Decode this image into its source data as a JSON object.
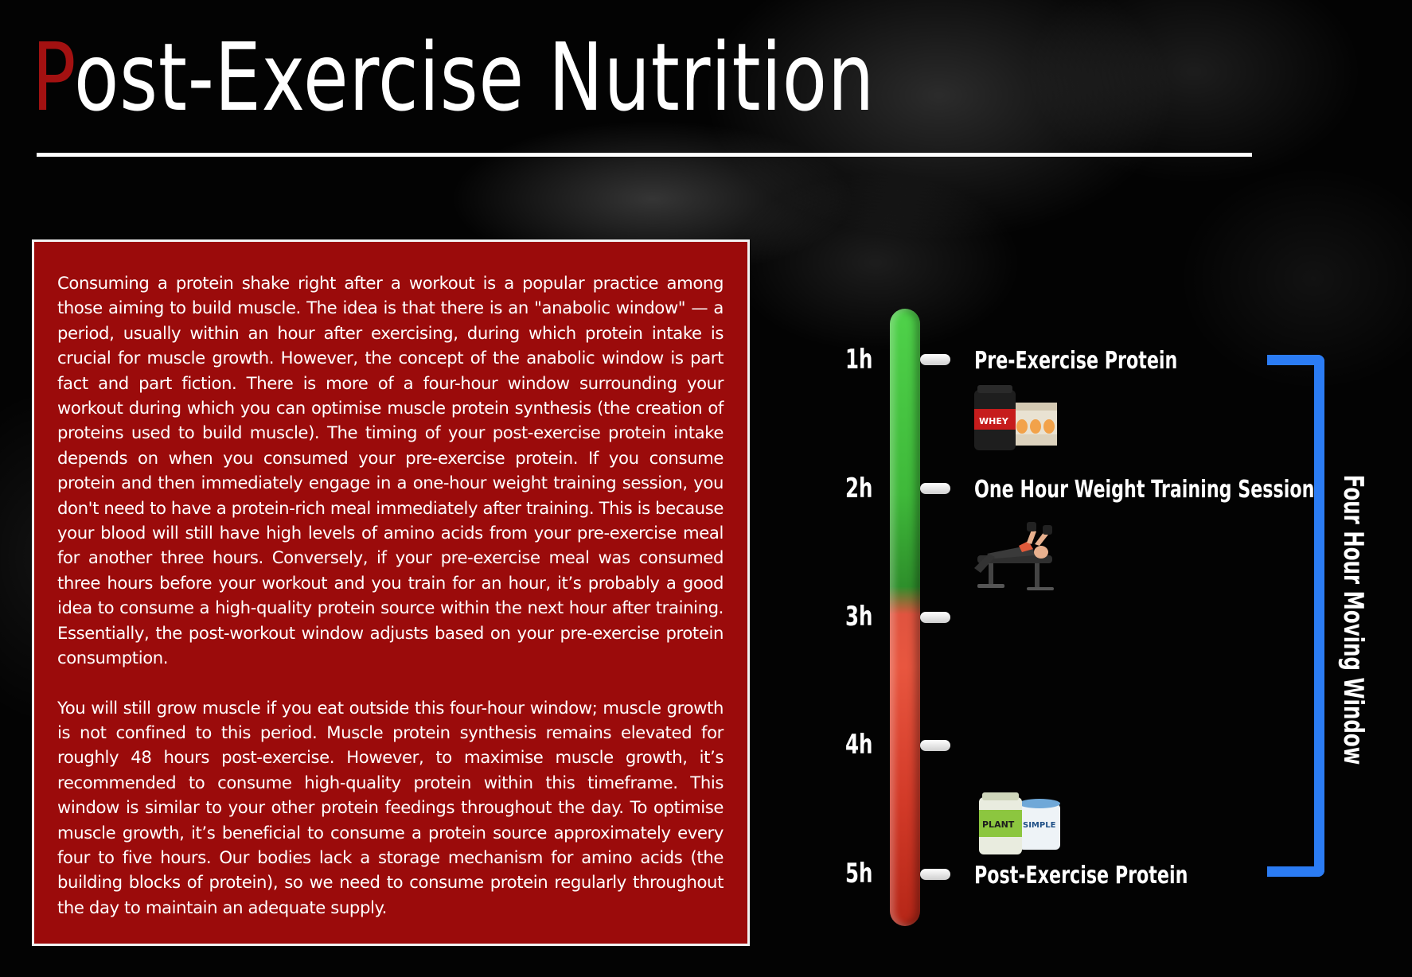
{
  "title": {
    "first_letter": "P",
    "rest": "ost-Exercise Nutrition"
  },
  "panel": {
    "paragraphs": [
      "Consuming a protein shake right after a workout is a popular practice among those aiming to build muscle. The idea is that there is an \"anabolic window\" — a period, usually within an hour after exercising, during which protein intake is crucial for muscle growth. However, the concept of the anabolic window is part fact and part fiction. There is more of a four-hour window surrounding your workout during which you can optimise muscle protein synthesis (the creation of proteins used to build muscle). The timing of your post-exercise protein intake depends on when you consumed your pre-exercise protein. If you consume protein and then immediately engage in a one-hour weight training session, you don't need to have a protein-rich meal immediately after training. This is because your blood will still have high levels of amino acids from your pre-exercise meal for another three hours. Conversely, if your pre-exercise meal was consumed three hours before your workout and you train for an hour, it’s probably a good idea to consume a high-quality protein source within the next hour after training. Essentially, the post-workout window adjusts based on your pre-exercise protein consumption.",
      "You will still grow muscle if you eat outside this four-hour window; muscle growth is not confined to this period. Muscle protein synthesis remains elevated for roughly 48 hours post-exercise. However, to maximise muscle growth, it’s recommended to consume high-quality protein within this timeframe. This window is similar to your other protein feedings throughout the day. To optimise muscle growth, it’s beneficial to consume a protein source approximately every four to five hours. Our bodies lack a storage mechanism for amino acids (the building blocks of protein), so we need to consume protein regularly throughout the day to maintain an adequate supply."
    ]
  },
  "timeline": {
    "ticks": [
      "1h",
      "2h",
      "3h",
      "4h",
      "5h"
    ],
    "events": [
      {
        "label": "Pre-Exercise Protein",
        "icon": "whey-protein-tub-and-eggs-icon"
      },
      {
        "label": "One Hour Weight Training Session",
        "icon": "bench-press-athlete-icon"
      },
      {
        "label": "Post-Exercise Protein",
        "icon": "plant-protein-tub-and-yogurt-icon"
      }
    ],
    "window_label": "Four Hour Moving Window",
    "product_labels": {
      "whey": "WHEY",
      "plant": "PLANT",
      "yogurt": "SIMPLE"
    },
    "colors": {
      "title_accent": "#a31111",
      "panel": "#9b0b0b",
      "bar_top": "#4fd24a",
      "bar_bottom": "#b52617",
      "bracket": "#2b7cf4"
    }
  }
}
